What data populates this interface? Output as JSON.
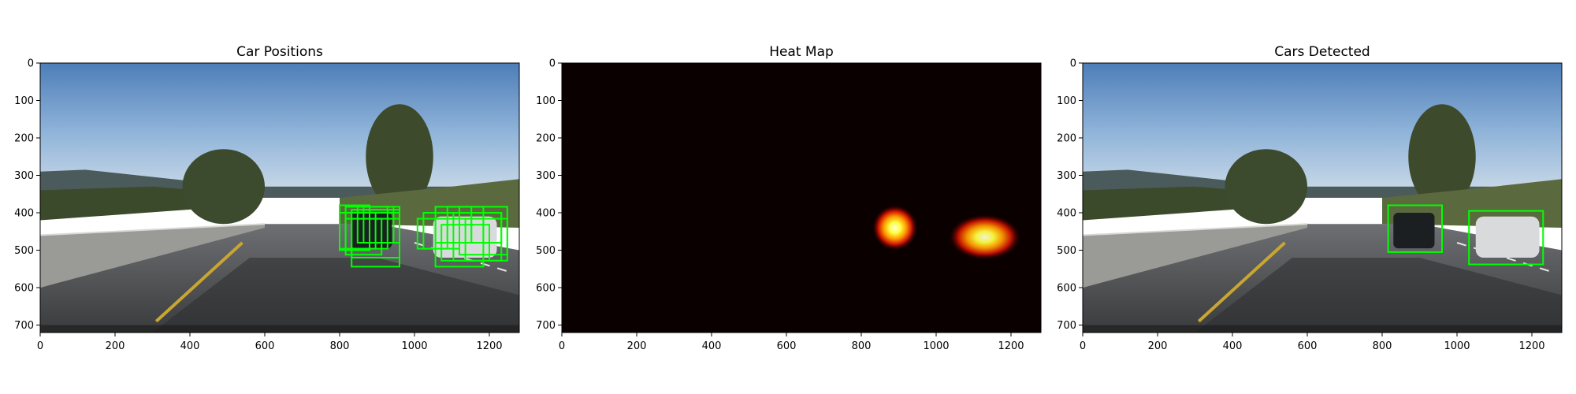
{
  "chart_data": [
    {
      "type": "image",
      "title": "Car Positions",
      "xlim": [
        0,
        1280
      ],
      "ylim": [
        720,
        0
      ],
      "xticks": [
        0,
        200,
        400,
        600,
        800,
        1000,
        1200
      ],
      "yticks": [
        0,
        100,
        200,
        300,
        400,
        500,
        600,
        700
      ],
      "boxes": [
        {
          "x0": 800,
          "y0": 380,
          "x1": 880,
          "y1": 500
        },
        {
          "x0": 816,
          "y0": 384,
          "x1": 928,
          "y1": 496
        },
        {
          "x0": 832,
          "y0": 392,
          "x1": 960,
          "y1": 520
        },
        {
          "x0": 848,
          "y0": 384,
          "x1": 944,
          "y1": 480
        },
        {
          "x0": 800,
          "y0": 400,
          "x1": 896,
          "y1": 496
        },
        {
          "x0": 864,
          "y0": 384,
          "x1": 960,
          "y1": 480
        },
        {
          "x0": 880,
          "y0": 400,
          "x1": 960,
          "y1": 480
        },
        {
          "x0": 816,
          "y0": 416,
          "x1": 912,
          "y1": 512
        },
        {
          "x0": 832,
          "y0": 416,
          "x1": 960,
          "y1": 544
        },
        {
          "x0": 1008,
          "y0": 416,
          "x1": 1088,
          "y1": 496
        },
        {
          "x0": 1024,
          "y0": 400,
          "x1": 1120,
          "y1": 496
        },
        {
          "x0": 1056,
          "y0": 384,
          "x1": 1152,
          "y1": 480
        },
        {
          "x0": 1056,
          "y0": 416,
          "x1": 1184,
          "y1": 544
        },
        {
          "x0": 1088,
          "y0": 384,
          "x1": 1184,
          "y1": 480
        },
        {
          "x0": 1104,
          "y0": 400,
          "x1": 1232,
          "y1": 528
        },
        {
          "x0": 1120,
          "y0": 384,
          "x1": 1248,
          "y1": 512
        },
        {
          "x0": 1136,
          "y0": 416,
          "x1": 1248,
          "y1": 528
        },
        {
          "x0": 1072,
          "y0": 432,
          "x1": 1200,
          "y1": 528
        },
        {
          "x0": 1152,
          "y0": 400,
          "x1": 1232,
          "y1": 480
        }
      ],
      "box_color": "#00ff00"
    },
    {
      "type": "heatmap",
      "title": "Heat Map",
      "xlim": [
        0,
        1280
      ],
      "ylim": [
        720,
        0
      ],
      "xticks": [
        0,
        200,
        400,
        600,
        800,
        1000,
        1200
      ],
      "yticks": [
        0,
        100,
        200,
        300,
        400,
        500,
        600,
        700
      ],
      "background": "#0b0000",
      "hotspots": [
        {
          "cx": 890,
          "cy": 440,
          "rx": 60,
          "ry": 60,
          "peak": 1.0
        },
        {
          "cx": 1130,
          "cy": 465,
          "rx": 95,
          "ry": 60,
          "peak": 0.95
        }
      ]
    },
    {
      "type": "image",
      "title": "Cars Detected",
      "xlim": [
        0,
        1280
      ],
      "ylim": [
        720,
        0
      ],
      "xticks": [
        0,
        200,
        400,
        600,
        800,
        1000,
        1200
      ],
      "yticks": [
        0,
        100,
        200,
        300,
        400,
        500,
        600,
        700
      ],
      "boxes": [
        {
          "x0": 816,
          "y0": 380,
          "x1": 960,
          "y1": 505
        },
        {
          "x0": 1032,
          "y0": 395,
          "x1": 1230,
          "y1": 538
        }
      ],
      "box_color": "#00ff00"
    }
  ]
}
